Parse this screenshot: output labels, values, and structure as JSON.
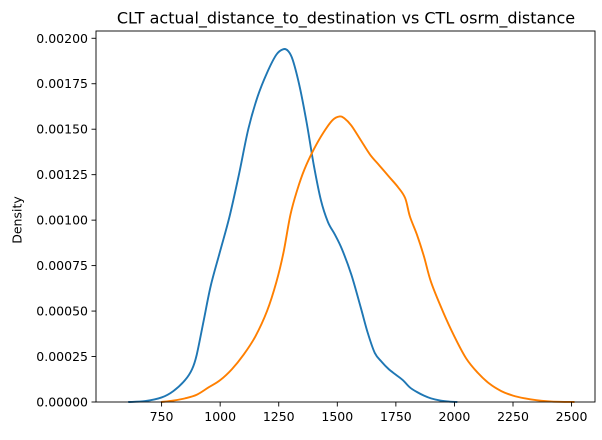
{
  "chart_data": {
    "type": "line",
    "title": "CLT actual_distance_to_destination vs CTL osrm_distance",
    "xlabel": "",
    "ylabel": "Density",
    "xlim": [
      470,
      2600
    ],
    "ylim": [
      0,
      0.00204
    ],
    "x_ticks": [
      750,
      1000,
      1250,
      1500,
      1750,
      2000,
      2250,
      2500
    ],
    "x_tick_labels": [
      "750",
      "1000",
      "1250",
      "1500",
      "1750",
      "2000",
      "2250",
      "2500"
    ],
    "y_ticks": [
      0,
      0.00025,
      0.0005,
      0.00075,
      0.001,
      0.00125,
      0.0015,
      0.00175,
      0.002
    ],
    "y_tick_labels": [
      "0.00000",
      "0.00025",
      "0.00050",
      "0.00075",
      "0.00100",
      "0.00125",
      "0.00150",
      "0.00175",
      "0.00200"
    ],
    "grid": false,
    "legend": false,
    "series": [
      {
        "color": "#1f77b4",
        "x": [
          610,
          680,
          750,
          800,
          850,
          880,
          900,
          930,
          960,
          1000,
          1040,
          1080,
          1120,
          1160,
          1200,
          1240,
          1270,
          1290,
          1310,
          1340,
          1370,
          1400,
          1430,
          1460,
          1490,
          1520,
          1560,
          1600,
          1630,
          1660,
          1690,
          1720,
          1750,
          1780,
          1810,
          1840,
          1870,
          1900,
          1940,
          1980,
          2010
        ],
        "y": [
          0.0,
          5e-06,
          2.5e-05,
          6e-05,
          0.00012,
          0.00018,
          0.00026,
          0.00045,
          0.00064,
          0.00083,
          0.00102,
          0.00125,
          0.0015,
          0.00168,
          0.00181,
          0.00191,
          0.00194,
          0.00193,
          0.00188,
          0.00173,
          0.00153,
          0.0013,
          0.00111,
          0.00099,
          0.00092,
          0.00084,
          0.0007,
          0.00052,
          0.00038,
          0.00027,
          0.00022,
          0.00018,
          0.00015,
          0.00012,
          8e-05,
          5.5e-05,
          3.5e-05,
          2e-05,
          8e-06,
          2e-06,
          0.0
        ]
      },
      {
        "color": "#ff7f00",
        "x": [
          750,
          800,
          850,
          900,
          950,
          1000,
          1050,
          1100,
          1150,
          1200,
          1240,
          1270,
          1300,
          1330,
          1360,
          1400,
          1440,
          1480,
          1510,
          1530,
          1560,
          1600,
          1640,
          1680,
          1720,
          1760,
          1790,
          1810,
          1840,
          1870,
          1900,
          1950,
          2000,
          2050,
          2100,
          2150,
          2200,
          2250,
          2300,
          2350,
          2400,
          2450,
          2510
        ],
        "y": [
          0.0,
          8e-06,
          2e-05,
          4e-05,
          8e-05,
          0.00012,
          0.00018,
          0.00026,
          0.00036,
          0.0005,
          0.00066,
          0.00082,
          0.00103,
          0.00117,
          0.00128,
          0.00139,
          0.00148,
          0.00155,
          0.00157,
          0.00156,
          0.00152,
          0.00144,
          0.00136,
          0.0013,
          0.00124,
          0.00118,
          0.00112,
          0.00102,
          0.00092,
          0.0008,
          0.00066,
          0.0005,
          0.00036,
          0.00024,
          0.00016,
          0.0001,
          6e-05,
          3.5e-05,
          2e-05,
          1e-05,
          4e-06,
          1e-06,
          0.0
        ]
      }
    ]
  }
}
